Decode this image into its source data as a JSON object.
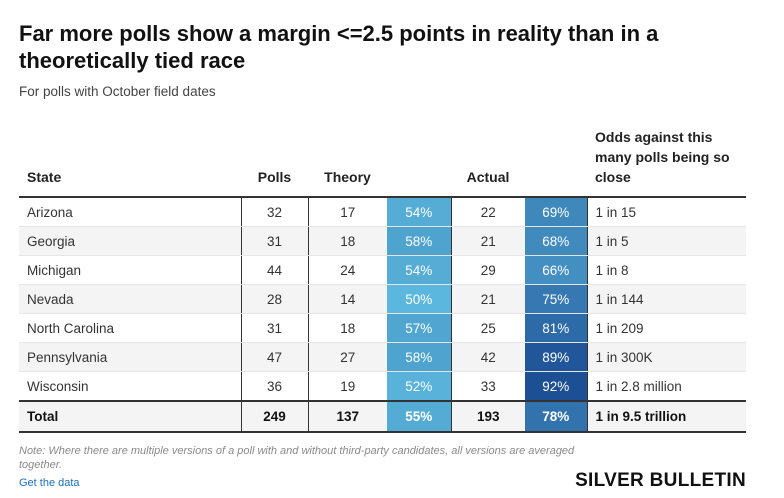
{
  "chart_data": {
    "type": "table",
    "title": "Far more polls show a margin <=2.5 points in reality than in a theoretically tied race",
    "subtitle": "For polls with October field dates",
    "columns": [
      "State",
      "Polls",
      "Theory",
      "",
      "Actual",
      "",
      "Odds against this many polls being so close"
    ],
    "rows": [
      {
        "state": "Arizona",
        "polls": "32",
        "theory": "17",
        "theory_pct": "54%",
        "theory_value": 54,
        "actual": "22",
        "actual_pct": "69%",
        "actual_value": 69,
        "odds": "1 in 15"
      },
      {
        "state": "Georgia",
        "polls": "31",
        "theory": "18",
        "theory_pct": "58%",
        "theory_value": 58,
        "actual": "21",
        "actual_pct": "68%",
        "actual_value": 68,
        "odds": "1 in 5"
      },
      {
        "state": "Michigan",
        "polls": "44",
        "theory": "24",
        "theory_pct": "54%",
        "theory_value": 54,
        "actual": "29",
        "actual_pct": "66%",
        "actual_value": 66,
        "odds": "1 in 8"
      },
      {
        "state": "Nevada",
        "polls": "28",
        "theory": "14",
        "theory_pct": "50%",
        "theory_value": 50,
        "actual": "21",
        "actual_pct": "75%",
        "actual_value": 75,
        "odds": "1 in 144"
      },
      {
        "state": "North Carolina",
        "polls": "31",
        "theory": "18",
        "theory_pct": "57%",
        "theory_value": 57,
        "actual": "25",
        "actual_pct": "81%",
        "actual_value": 81,
        "odds": "1 in 209"
      },
      {
        "state": "Pennsylvania",
        "polls": "47",
        "theory": "27",
        "theory_pct": "58%",
        "theory_value": 58,
        "actual": "42",
        "actual_pct": "89%",
        "actual_value": 89,
        "odds": "1 in 300K"
      },
      {
        "state": "Wisconsin",
        "polls": "36",
        "theory": "19",
        "theory_pct": "52%",
        "theory_value": 52,
        "actual": "33",
        "actual_pct": "92%",
        "actual_value": 92,
        "odds": "1 in 2.8 million"
      }
    ],
    "total": {
      "state": "Total",
      "polls": "249",
      "theory": "137",
      "theory_pct": "55%",
      "theory_value": 55,
      "actual": "193",
      "actual_pct": "78%",
      "actual_value": 78,
      "odds": "1 in 9.5 trillion"
    },
    "color_scale": {
      "low": "#5bb7dd",
      "high": "#1d4f95"
    }
  },
  "footer": {
    "note": "Note: Where there are multiple versions of a poll with and without third-party candidates, all versions are averaged together.",
    "link": "Get the data",
    "brand": "SILVER BULLETIN"
  }
}
